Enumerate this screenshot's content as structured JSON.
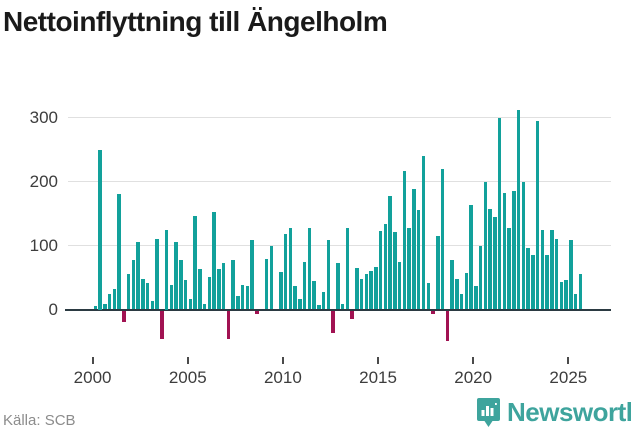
{
  "header": {
    "title": "Nettoinflyttning till Ängelholm"
  },
  "footer": {
    "source_label": "Källa: SCB",
    "logo_text": "Newsworthy"
  },
  "colors": {
    "positive_bar": "#12a19b",
    "negative_bar": "#a11252",
    "axis_line": "#2b3a42",
    "gridline": "#e0e0e0",
    "logo_teal": "#3ea49d"
  },
  "chart_data": {
    "type": "bar",
    "title": "Nettoinflyttning till Ängelholm",
    "frequency": "quarterly",
    "start_period": "2000-Q1",
    "end_period": "2025-Q3",
    "xlabel": "",
    "ylabel": "",
    "x_tick_labels": [
      "2000",
      "2005",
      "2010",
      "2015",
      "2020",
      "2025"
    ],
    "y_ticks": [
      {
        "label": "0",
        "value": 0
      },
      {
        "label": "100",
        "value": 100
      },
      {
        "label": "200",
        "value": 200
      },
      {
        "label": "300",
        "value": 300
      }
    ],
    "ylim": [
      -70,
      320
    ],
    "grid": "horizontal",
    "values": [
      5,
      250,
      8,
      25,
      32,
      181,
      -18,
      55,
      77,
      105,
      47,
      41,
      13,
      110,
      -44,
      125,
      38,
      106,
      78,
      46,
      17,
      146,
      64,
      9,
      51,
      152,
      63,
      72,
      -44,
      78,
      21,
      38,
      37,
      109,
      -5,
      0,
      79,
      100,
      0,
      58,
      118,
      128,
      37,
      17,
      75,
      127,
      44,
      7,
      27,
      108,
      -35,
      73,
      8,
      127,
      -13,
      65,
      48,
      55,
      60,
      66,
      123,
      134,
      177,
      121,
      75,
      217,
      127,
      189,
      156,
      240,
      41,
      -5,
      115,
      220,
      -47,
      78,
      47,
      25,
      57,
      163,
      37,
      100,
      200,
      157,
      144,
      299,
      183,
      127,
      186,
      312,
      199,
      97,
      86,
      295,
      124,
      85,
      124,
      110,
      43,
      46,
      108,
      24,
      55
    ]
  }
}
